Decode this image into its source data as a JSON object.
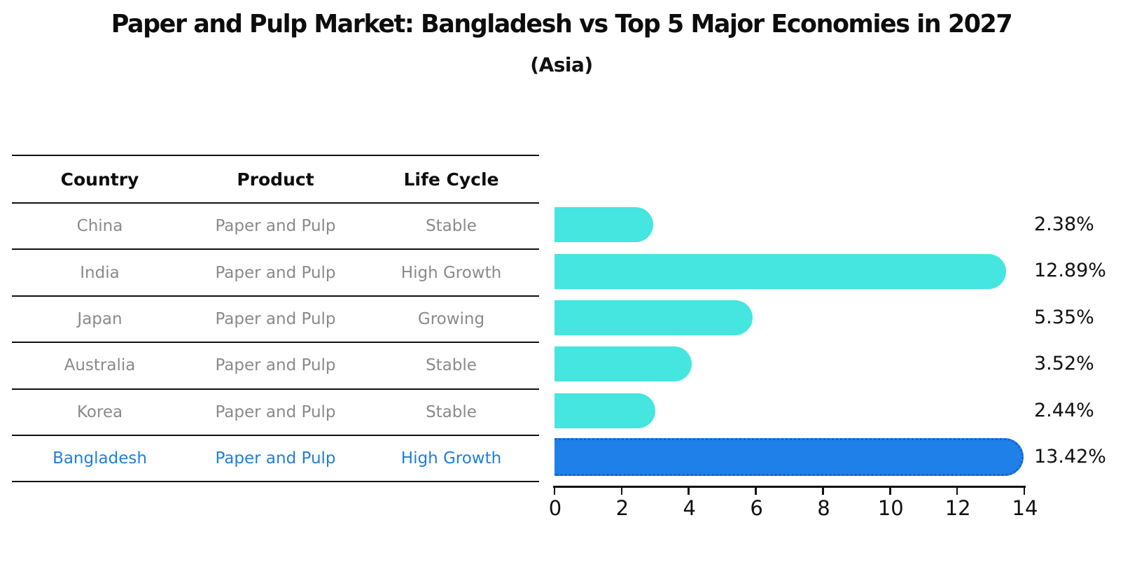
{
  "title": "Paper and Pulp Market: Bangladesh vs Top 5 Major Economies in 2027",
  "subtitle": "(Asia)",
  "table": {
    "headers": [
      "Country",
      "Product",
      "Life Cycle"
    ],
    "rows": [
      {
        "country": "China",
        "product": "Paper and Pulp",
        "life_cycle": "Stable",
        "highlight": false
      },
      {
        "country": "India",
        "product": "Paper and Pulp",
        "life_cycle": "High Growth",
        "highlight": false
      },
      {
        "country": "Japan",
        "product": "Paper and Pulp",
        "life_cycle": "Growing",
        "highlight": false
      },
      {
        "country": "Australia",
        "product": "Paper and Pulp",
        "life_cycle": "Stable",
        "highlight": false
      },
      {
        "country": "Korea",
        "product": "Paper and Pulp",
        "life_cycle": "Stable",
        "highlight": false
      },
      {
        "country": "Bangladesh",
        "product": "Paper and Pulp",
        "life_cycle": "High Growth",
        "highlight": true
      }
    ]
  },
  "chart_data": {
    "type": "bar",
    "orientation": "horizontal",
    "title": "Paper and Pulp Market: Bangladesh vs Top 5 Major Economies in 2027",
    "subtitle": "(Asia)",
    "categories": [
      "China",
      "India",
      "Japan",
      "Australia",
      "Korea",
      "Bangladesh"
    ],
    "values": [
      2.38,
      12.89,
      5.35,
      3.52,
      2.44,
      13.42
    ],
    "value_labels": [
      "2.38%",
      "12.89%",
      "5.35%",
      "3.52%",
      "2.44%",
      "13.42%"
    ],
    "x_ticks": [
      "0",
      "2",
      "4",
      "6",
      "8",
      "10",
      "12",
      "14"
    ],
    "xlim": [
      0,
      14
    ],
    "grid": false,
    "legend": "none",
    "bar_color": "#45e5e0",
    "highlight_color": "#1e80e8",
    "highlight_index": 5
  },
  "colors": {
    "background": "#ffffff",
    "text_primary": "#0d0d0d",
    "text_muted": "#8a8a8a",
    "accent_blue": "#1e80e8",
    "bar_cyan": "#45e5e0",
    "axis": "#111111"
  }
}
